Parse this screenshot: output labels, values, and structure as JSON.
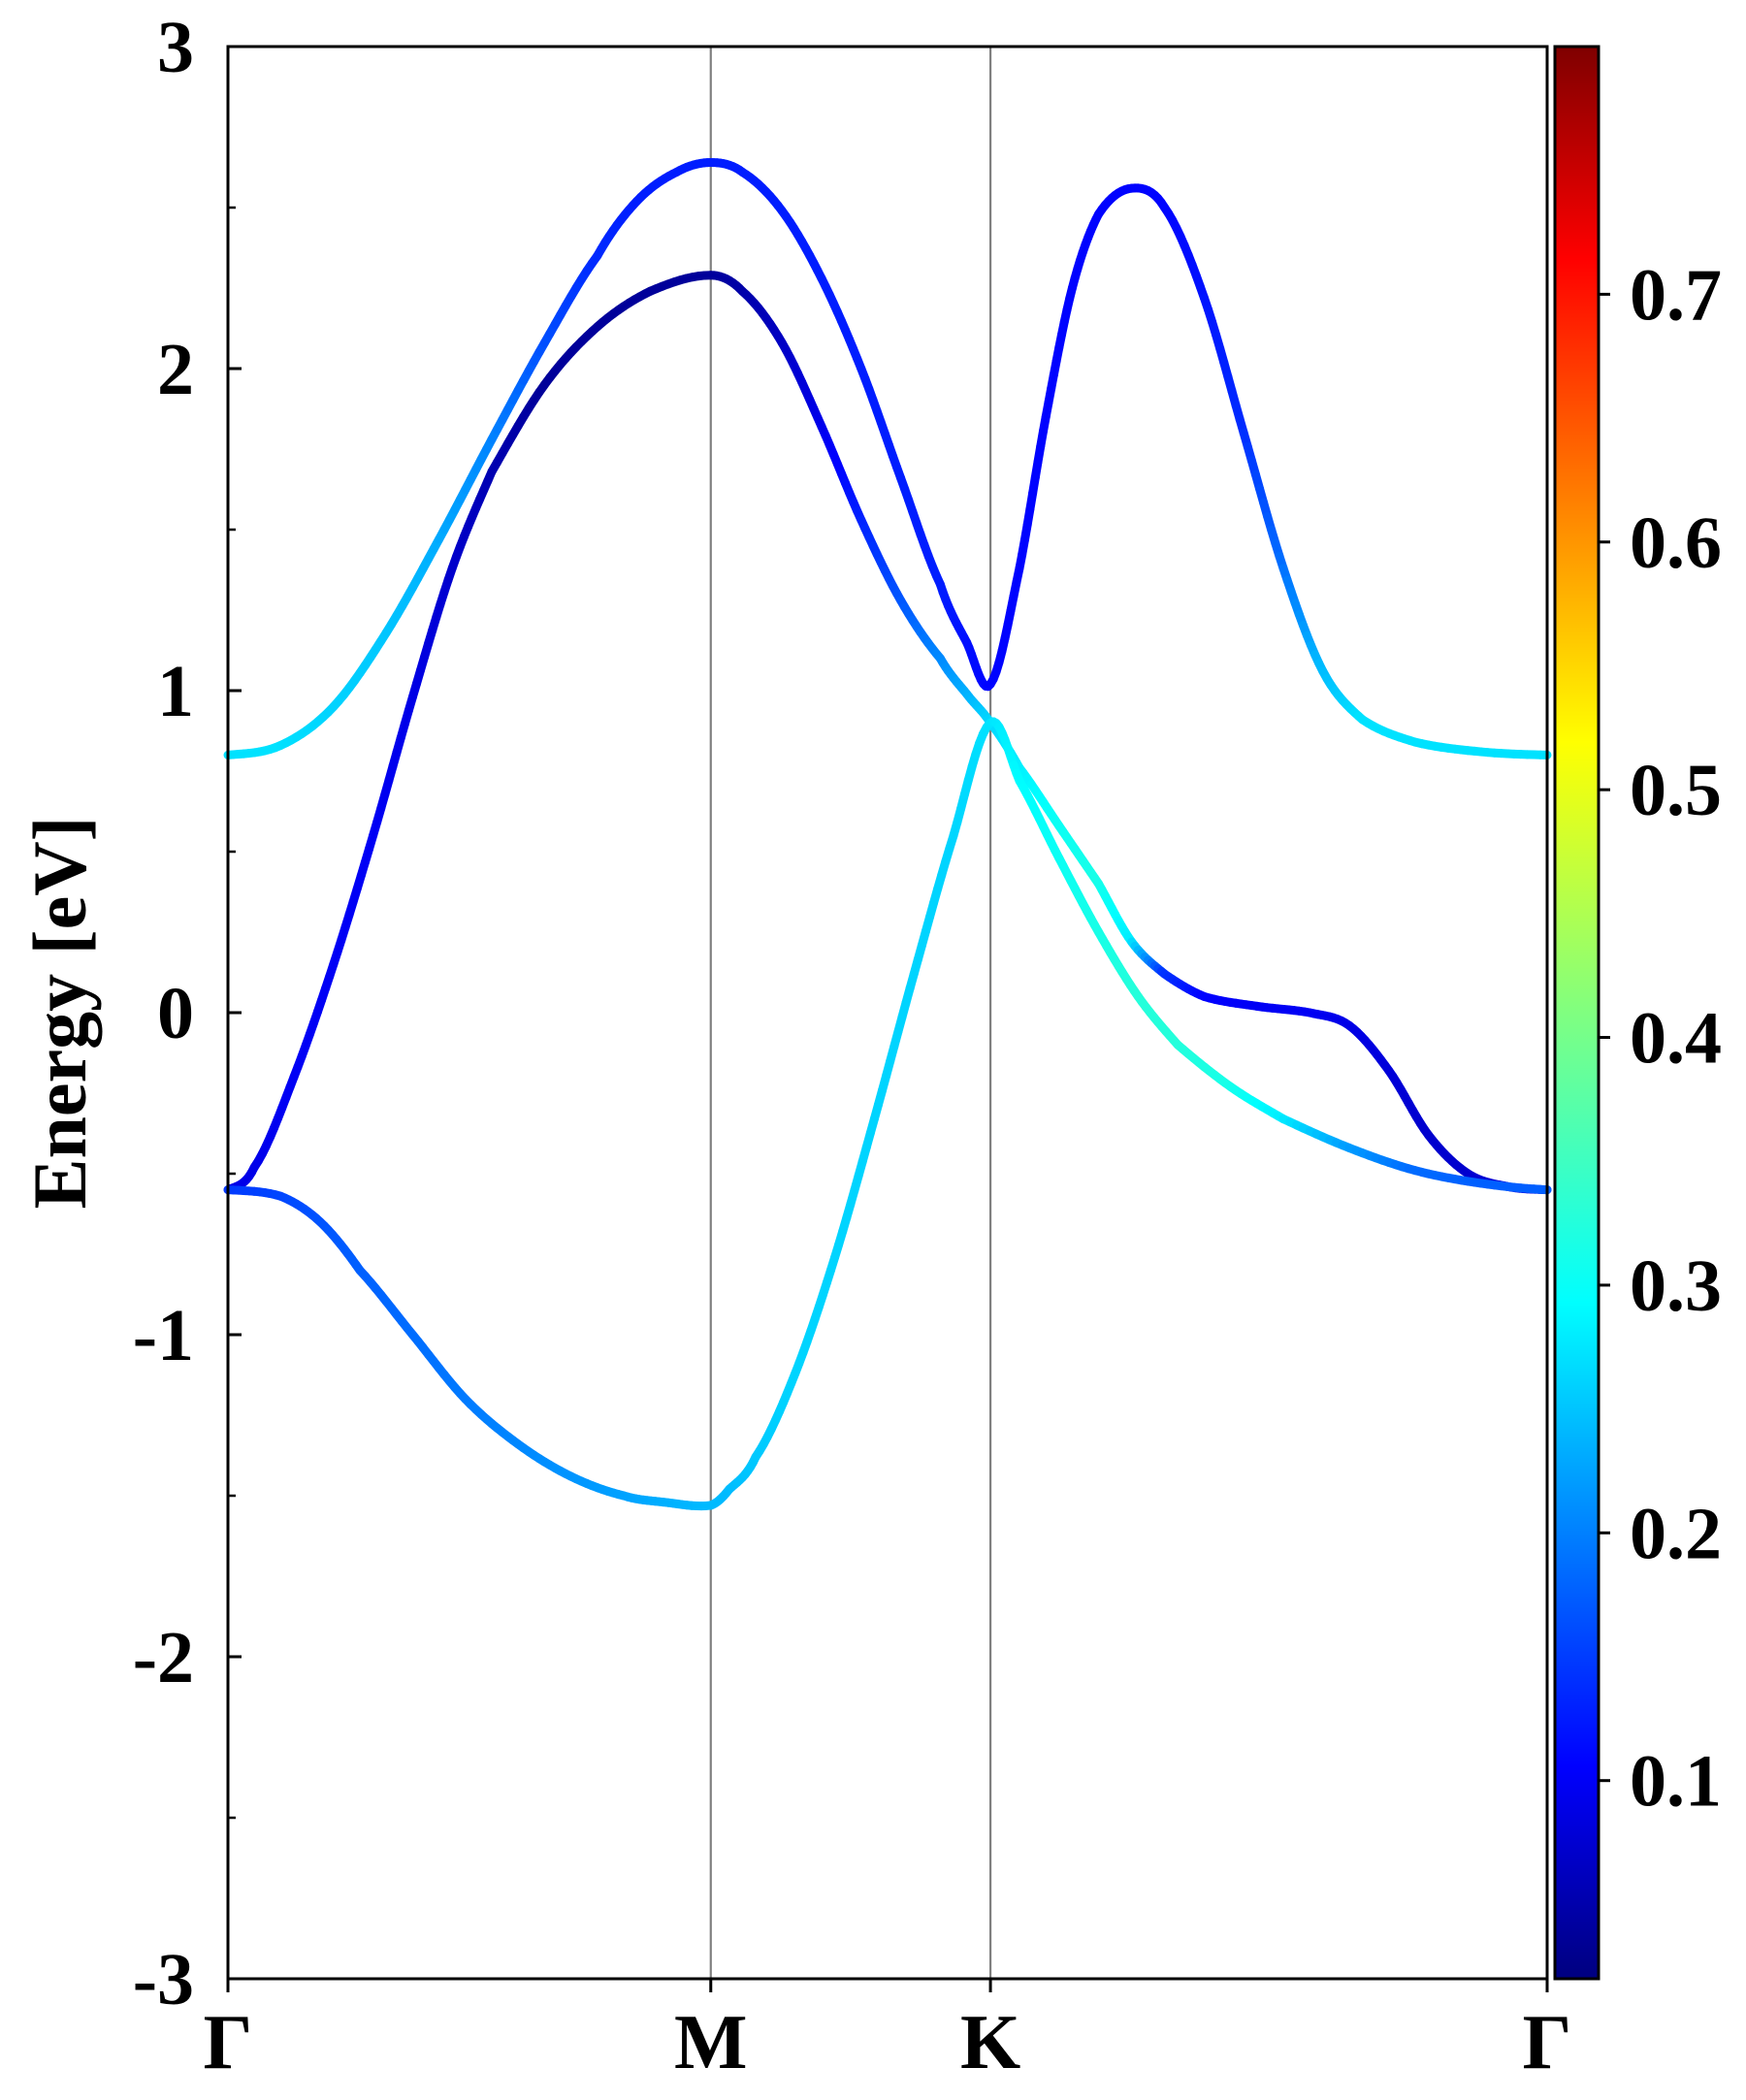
{
  "chart_data": {
    "type": "line",
    "title": "",
    "xlabel": "",
    "ylabel": "Energy [eV]",
    "ylim": [
      -3,
      3
    ],
    "yticks": [
      -3,
      -2,
      -1,
      0,
      1,
      2,
      3
    ],
    "ytick_labels": [
      "-3",
      "-2",
      "-1",
      "0",
      "1",
      "2",
      "3"
    ],
    "xlim": [
      0,
      1
    ],
    "high_symmetry_points": [
      {
        "label": "Γ",
        "x": 0.0
      },
      {
        "label": "M",
        "x": 0.366
      },
      {
        "label": "K",
        "x": 0.578
      },
      {
        "label": "Γ",
        "x": 1.0
      }
    ],
    "vertical_lines_at": [
      0.366,
      0.578
    ],
    "grid": false,
    "colorbar": {
      "colormap": "jet",
      "range": [
        0.02,
        0.8
      ],
      "ticks": [
        0.1,
        0.2,
        0.3,
        0.4,
        0.5,
        0.6,
        0.7
      ],
      "tick_labels": [
        "0.1",
        "0.2",
        "0.3",
        "0.4",
        "0.5",
        "0.6",
        "0.7"
      ]
    },
    "series": [
      {
        "points": [
          [
            0.0,
            0.8
          ],
          [
            0.04,
            0.83
          ],
          [
            0.08,
            0.95
          ],
          [
            0.12,
            1.18
          ],
          [
            0.16,
            1.47
          ],
          [
            0.2,
            1.78
          ],
          [
            0.24,
            2.08
          ],
          [
            0.28,
            2.35
          ],
          [
            0.31,
            2.52
          ],
          [
            0.34,
            2.61
          ],
          [
            0.366,
            2.64
          ],
          [
            0.39,
            2.61
          ],
          [
            0.42,
            2.49
          ],
          [
            0.45,
            2.28
          ],
          [
            0.48,
            2.0
          ],
          [
            0.51,
            1.66
          ],
          [
            0.54,
            1.33
          ],
          [
            0.56,
            1.15
          ],
          [
            0.578,
            1.02
          ],
          [
            0.6,
            1.38
          ],
          [
            0.62,
            1.85
          ],
          [
            0.64,
            2.25
          ],
          [
            0.66,
            2.48
          ],
          [
            0.685,
            2.56
          ],
          [
            0.71,
            2.5
          ],
          [
            0.74,
            2.22
          ],
          [
            0.77,
            1.8
          ],
          [
            0.8,
            1.38
          ],
          [
            0.83,
            1.06
          ],
          [
            0.86,
            0.91
          ],
          [
            0.9,
            0.84
          ],
          [
            0.95,
            0.81
          ],
          [
            1.0,
            0.8
          ]
        ],
        "weights": [
          0.29,
          0.29,
          0.28,
          0.27,
          0.25,
          0.22,
          0.18,
          0.15,
          0.14,
          0.14,
          0.14,
          0.14,
          0.14,
          0.14,
          0.14,
          0.14,
          0.14,
          0.13,
          0.12,
          0.12,
          0.12,
          0.12,
          0.12,
          0.12,
          0.12,
          0.13,
          0.15,
          0.2,
          0.26,
          0.29,
          0.29,
          0.29,
          0.29
        ]
      },
      {
        "points": [
          [
            0.0,
            -0.55
          ],
          [
            0.02,
            -0.48
          ],
          [
            0.05,
            -0.2
          ],
          [
            0.08,
            0.15
          ],
          [
            0.11,
            0.55
          ],
          [
            0.14,
            0.98
          ],
          [
            0.17,
            1.38
          ],
          [
            0.2,
            1.68
          ],
          [
            0.24,
            1.95
          ],
          [
            0.28,
            2.13
          ],
          [
            0.32,
            2.24
          ],
          [
            0.366,
            2.29
          ],
          [
            0.39,
            2.24
          ],
          [
            0.42,
            2.08
          ],
          [
            0.45,
            1.82
          ],
          [
            0.48,
            1.53
          ],
          [
            0.51,
            1.28
          ],
          [
            0.54,
            1.1
          ],
          [
            0.56,
            0.99
          ],
          [
            0.578,
            0.9
          ],
          [
            0.6,
            0.76
          ],
          [
            0.63,
            0.58
          ],
          [
            0.66,
            0.4
          ],
          [
            0.685,
            0.22
          ],
          [
            0.71,
            0.12
          ],
          [
            0.74,
            0.05
          ],
          [
            0.78,
            0.02
          ],
          [
            0.82,
            0.0
          ],
          [
            0.85,
            -0.04
          ],
          [
            0.88,
            -0.18
          ],
          [
            0.91,
            -0.38
          ],
          [
            0.94,
            -0.5
          ],
          [
            0.97,
            -0.54
          ],
          [
            1.0,
            -0.55
          ]
        ],
        "weights": [
          0.1,
          0.1,
          0.11,
          0.11,
          0.11,
          0.1,
          0.08,
          0.06,
          0.04,
          0.04,
          0.04,
          0.04,
          0.05,
          0.07,
          0.1,
          0.14,
          0.18,
          0.22,
          0.25,
          0.28,
          0.3,
          0.32,
          0.33,
          0.3,
          0.16,
          0.12,
          0.11,
          0.11,
          0.1,
          0.09,
          0.08,
          0.08,
          0.09,
          0.1
        ]
      },
      {
        "points": [
          [
            0.0,
            -0.55
          ],
          [
            0.04,
            -0.57
          ],
          [
            0.07,
            -0.65
          ],
          [
            0.1,
            -0.8
          ],
          [
            0.14,
            -1.0
          ],
          [
            0.18,
            -1.2
          ],
          [
            0.22,
            -1.34
          ],
          [
            0.26,
            -1.44
          ],
          [
            0.3,
            -1.5
          ],
          [
            0.33,
            -1.52
          ],
          [
            0.366,
            -1.53
          ],
          [
            0.38,
            -1.48
          ],
          [
            0.4,
            -1.38
          ],
          [
            0.43,
            -1.12
          ],
          [
            0.46,
            -0.76
          ],
          [
            0.49,
            -0.33
          ],
          [
            0.52,
            0.12
          ],
          [
            0.55,
            0.55
          ],
          [
            0.578,
            0.9
          ],
          [
            0.6,
            0.72
          ],
          [
            0.63,
            0.48
          ],
          [
            0.66,
            0.25
          ],
          [
            0.69,
            0.05
          ],
          [
            0.72,
            -0.1
          ],
          [
            0.76,
            -0.23
          ],
          [
            0.8,
            -0.33
          ],
          [
            0.85,
            -0.42
          ],
          [
            0.9,
            -0.49
          ],
          [
            0.95,
            -0.53
          ],
          [
            1.0,
            -0.55
          ]
        ],
        "weights": [
          0.16,
          0.17,
          0.18,
          0.19,
          0.2,
          0.21,
          0.22,
          0.23,
          0.24,
          0.25,
          0.26,
          0.26,
          0.27,
          0.28,
          0.28,
          0.28,
          0.28,
          0.28,
          0.29,
          0.31,
          0.32,
          0.33,
          0.34,
          0.34,
          0.33,
          0.3,
          0.24,
          0.2,
          0.19,
          0.19
        ]
      }
    ]
  }
}
